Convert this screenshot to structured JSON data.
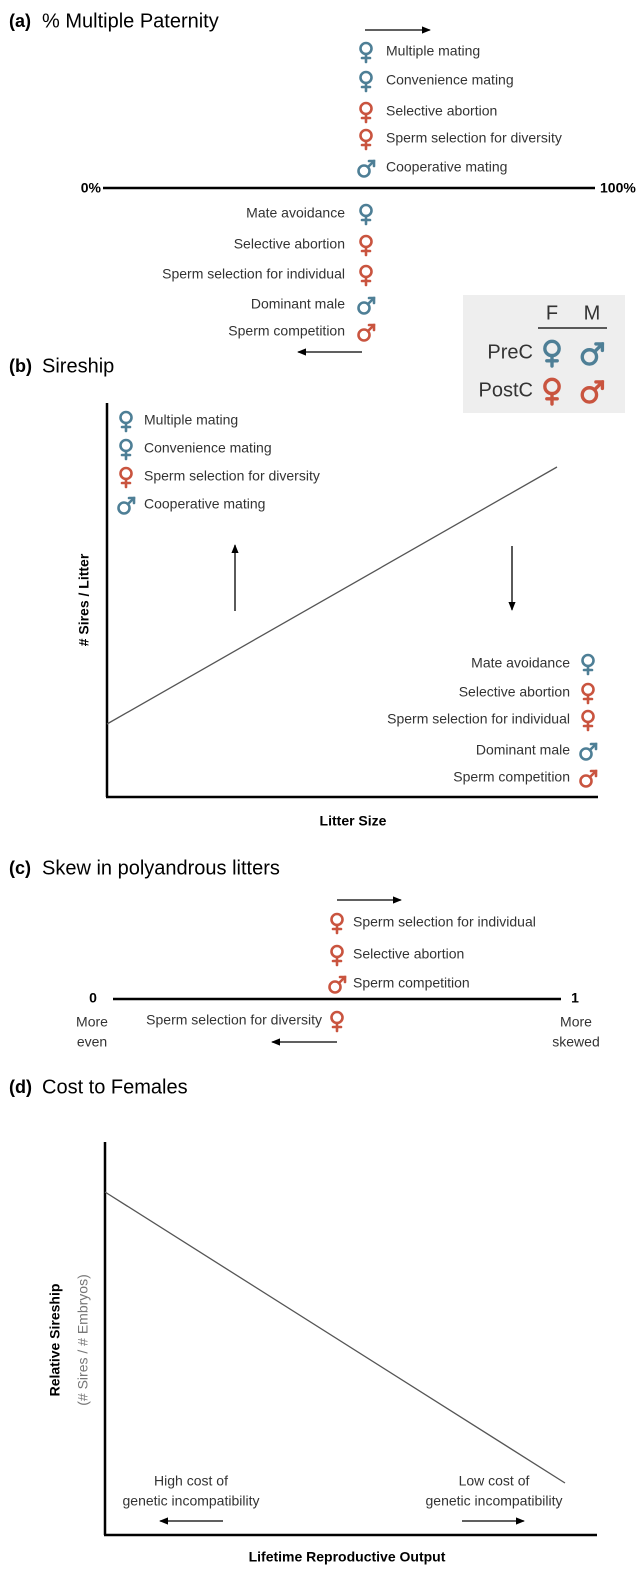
{
  "legend": {
    "columns": [
      "F",
      "M"
    ],
    "rows": [
      "PreC",
      "PostC"
    ]
  },
  "panels": [
    {
      "label": "(a)",
      "title": "% Multiple Paternity",
      "axis_start": "0%",
      "axis_end": "100%",
      "above": [
        {
          "text": "Multiple mating",
          "sex": "F",
          "phase": "PreC"
        },
        {
          "text": "Convenience mating",
          "sex": "F",
          "phase": "PreC"
        },
        {
          "text": "Selective abortion",
          "sex": "F",
          "phase": "PostC"
        },
        {
          "text": "Sperm selection for diversity",
          "sex": "F",
          "phase": "PostC"
        },
        {
          "text": "Cooperative mating",
          "sex": "M",
          "phase": "PreC"
        }
      ],
      "below": [
        {
          "text": "Mate avoidance",
          "sex": "F",
          "phase": "PreC"
        },
        {
          "text": "Selective abortion",
          "sex": "F",
          "phase": "PostC"
        },
        {
          "text": "Sperm selection for individual",
          "sex": "F",
          "phase": "PostC"
        },
        {
          "text": "Dominant male",
          "sex": "M",
          "phase": "PreC"
        },
        {
          "text": "Sperm competition",
          "sex": "M",
          "phase": "PostC"
        }
      ]
    },
    {
      "label": "(b)",
      "title": "Sireship",
      "y_axis": "# Sires / Litter",
      "x_axis": "Litter Size",
      "above": [
        {
          "text": "Multiple mating",
          "sex": "F",
          "phase": "PreC"
        },
        {
          "text": "Convenience mating",
          "sex": "F",
          "phase": "PreC"
        },
        {
          "text": "Sperm selection for diversity",
          "sex": "F",
          "phase": "PostC"
        },
        {
          "text": "Cooperative mating",
          "sex": "M",
          "phase": "PreC"
        }
      ],
      "below": [
        {
          "text": "Mate avoidance",
          "sex": "F",
          "phase": "PreC"
        },
        {
          "text": "Selective abortion",
          "sex": "F",
          "phase": "PostC"
        },
        {
          "text": "Sperm selection for individual",
          "sex": "F",
          "phase": "PostC"
        },
        {
          "text": "Dominant male",
          "sex": "M",
          "phase": "PreC"
        },
        {
          "text": "Sperm competition",
          "sex": "M",
          "phase": "PostC"
        }
      ]
    },
    {
      "label": "(c)",
      "title": "Skew in polyandrous litters",
      "axis_start": "0",
      "axis_end": "1",
      "start_note": [
        "More",
        "even"
      ],
      "end_note": [
        "More",
        "skewed"
      ],
      "above": [
        {
          "text": "Sperm selection for individual",
          "sex": "F",
          "phase": "PostC"
        },
        {
          "text": "Selective abortion",
          "sex": "F",
          "phase": "PostC"
        },
        {
          "text": "Sperm competition",
          "sex": "M",
          "phase": "PostC"
        }
      ],
      "below": [
        {
          "text": "Sperm selection for diversity",
          "sex": "F",
          "phase": "PostC"
        }
      ]
    },
    {
      "label": "(d)",
      "title": "Cost to Females",
      "y_axis": "Relative Sireship",
      "y_axis_sub": "(# Sires / # Embryos)",
      "x_axis": "Lifetime Reproductive Output",
      "left_note": [
        "High cost of",
        "genetic incompatibility"
      ],
      "right_note": [
        "Low cost of",
        "genetic incompatibility"
      ]
    }
  ]
}
